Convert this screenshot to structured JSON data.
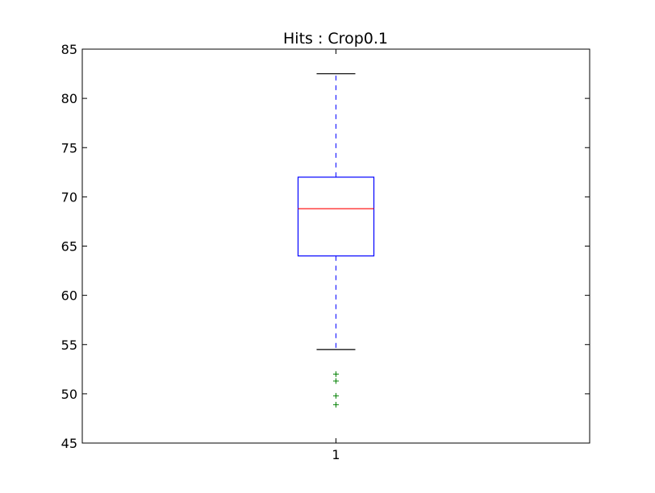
{
  "chart_data": {
    "type": "boxplot",
    "title": "Hits : Crop0.1",
    "xlabel": "",
    "ylabel": "",
    "ylim": [
      45,
      85
    ],
    "yticks": [
      45,
      50,
      55,
      60,
      65,
      70,
      75,
      80,
      85
    ],
    "categories": [
      "1"
    ],
    "boxes": [
      {
        "category": "1",
        "whisker_low": 54.5,
        "q1": 64.0,
        "median": 68.8,
        "q3": 72.0,
        "whisker_high": 82.5,
        "outliers": [
          52.0,
          51.3,
          49.8,
          48.9
        ]
      }
    ],
    "grid": false,
    "colors": {
      "box": "#0000ff",
      "median": "#ff0000",
      "whisker": "#0000ff",
      "cap": "#000000",
      "outlier": "#008000",
      "axes": "#000000"
    }
  }
}
